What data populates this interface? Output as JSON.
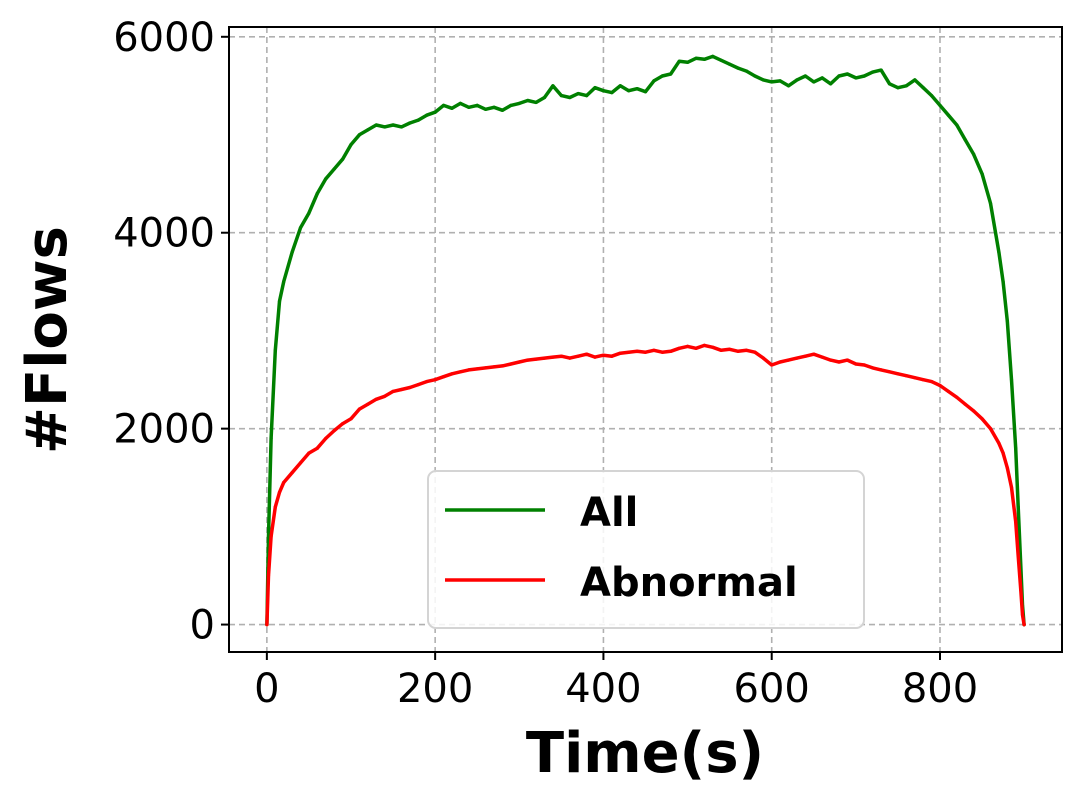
{
  "chart_data": {
    "type": "line",
    "xlabel": "Time(s)",
    "ylabel": "#Flows",
    "xlim": [
      -45,
      945
    ],
    "ylim": [
      -280,
      6100
    ],
    "x_ticks": [
      0,
      200,
      400,
      600,
      800
    ],
    "y_ticks": [
      0,
      2000,
      4000,
      6000
    ],
    "grid": true,
    "legend_position": "bottom-center",
    "series": [
      {
        "name": "All",
        "color": "#008000",
        "x": [
          0,
          2,
          5,
          10,
          15,
          20,
          30,
          40,
          50,
          60,
          70,
          80,
          90,
          100,
          110,
          120,
          130,
          140,
          150,
          160,
          170,
          180,
          190,
          200,
          210,
          220,
          230,
          240,
          250,
          260,
          270,
          280,
          290,
          300,
          310,
          320,
          330,
          340,
          350,
          360,
          370,
          380,
          390,
          400,
          410,
          420,
          430,
          440,
          450,
          460,
          470,
          480,
          490,
          500,
          510,
          520,
          530,
          540,
          550,
          560,
          570,
          580,
          590,
          600,
          610,
          620,
          630,
          640,
          650,
          660,
          670,
          680,
          690,
          700,
          710,
          720,
          730,
          740,
          750,
          760,
          770,
          780,
          790,
          800,
          810,
          820,
          830,
          840,
          850,
          860,
          870,
          875,
          880,
          885,
          890,
          893,
          896,
          898,
          900
        ],
        "values": [
          0,
          900,
          1900,
          2800,
          3300,
          3500,
          3800,
          4050,
          4200,
          4400,
          4550,
          4650,
          4750,
          4900,
          5000,
          5050,
          5100,
          5080,
          5100,
          5080,
          5120,
          5150,
          5200,
          5230,
          5300,
          5270,
          5320,
          5280,
          5300,
          5260,
          5280,
          5250,
          5300,
          5320,
          5350,
          5330,
          5380,
          5500,
          5400,
          5380,
          5420,
          5400,
          5480,
          5450,
          5430,
          5500,
          5450,
          5470,
          5440,
          5550,
          5600,
          5620,
          5750,
          5740,
          5780,
          5770,
          5800,
          5760,
          5720,
          5680,
          5650,
          5600,
          5560,
          5540,
          5550,
          5500,
          5560,
          5600,
          5540,
          5580,
          5520,
          5600,
          5620,
          5580,
          5600,
          5640,
          5660,
          5520,
          5480,
          5500,
          5560,
          5480,
          5400,
          5300,
          5200,
          5100,
          4950,
          4800,
          4600,
          4300,
          3800,
          3500,
          3100,
          2500,
          1800,
          1200,
          600,
          200,
          0
        ]
      },
      {
        "name": "Abnormal",
        "color": "#ff0000",
        "x": [
          0,
          2,
          5,
          10,
          15,
          20,
          30,
          40,
          50,
          60,
          70,
          80,
          90,
          100,
          110,
          120,
          130,
          140,
          150,
          160,
          170,
          180,
          190,
          200,
          210,
          220,
          230,
          240,
          250,
          260,
          270,
          280,
          290,
          300,
          310,
          320,
          330,
          340,
          350,
          360,
          370,
          380,
          390,
          400,
          410,
          420,
          430,
          440,
          450,
          460,
          470,
          480,
          490,
          500,
          510,
          520,
          530,
          540,
          550,
          560,
          570,
          580,
          590,
          600,
          610,
          620,
          630,
          640,
          650,
          660,
          670,
          680,
          690,
          700,
          710,
          720,
          730,
          740,
          750,
          760,
          770,
          780,
          790,
          800,
          810,
          820,
          830,
          840,
          850,
          860,
          870,
          875,
          880,
          885,
          890,
          893,
          896,
          898,
          900
        ],
        "values": [
          0,
          500,
          900,
          1200,
          1350,
          1450,
          1550,
          1650,
          1750,
          1800,
          1900,
          1980,
          2050,
          2100,
          2200,
          2250,
          2300,
          2330,
          2380,
          2400,
          2420,
          2450,
          2480,
          2500,
          2530,
          2560,
          2580,
          2600,
          2610,
          2620,
          2630,
          2640,
          2660,
          2680,
          2700,
          2710,
          2720,
          2730,
          2740,
          2720,
          2740,
          2760,
          2730,
          2750,
          2740,
          2770,
          2780,
          2790,
          2780,
          2800,
          2780,
          2790,
          2820,
          2840,
          2820,
          2850,
          2830,
          2800,
          2810,
          2790,
          2800,
          2780,
          2720,
          2650,
          2680,
          2700,
          2720,
          2740,
          2760,
          2730,
          2700,
          2680,
          2700,
          2660,
          2650,
          2620,
          2600,
          2580,
          2560,
          2540,
          2520,
          2500,
          2480,
          2440,
          2380,
          2320,
          2250,
          2180,
          2100,
          2000,
          1850,
          1750,
          1600,
          1400,
          1050,
          700,
          350,
          100,
          0
        ]
      }
    ]
  }
}
